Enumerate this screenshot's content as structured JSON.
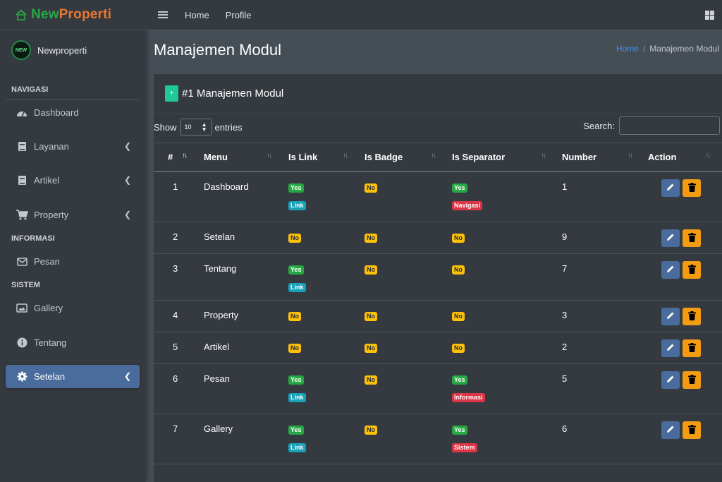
{
  "brand": {
    "new": "New",
    "properti": "Properti",
    "logo_icon": "house-icon"
  },
  "user": {
    "name": "Newproperti",
    "avatar_text": "NEW"
  },
  "sidebar": {
    "headers": [
      "NAVIGASI",
      "INFORMASI",
      "SISTEM"
    ],
    "items": [
      {
        "label": "Dashboard",
        "icon": "gauge-icon",
        "chevron": false
      },
      {
        "label": "Layanan",
        "icon": "book-icon",
        "chevron": true
      },
      {
        "label": "Artikel",
        "icon": "book-icon",
        "chevron": true
      },
      {
        "label": "Property",
        "icon": "cart-icon",
        "chevron": true
      },
      {
        "label": "Pesan",
        "icon": "envelope-icon",
        "chevron": false
      },
      {
        "label": "Gallery",
        "icon": "image-icon",
        "chevron": false
      },
      {
        "label": "Tentang",
        "icon": "info-icon",
        "chevron": false
      },
      {
        "label": "Setelan",
        "icon": "gear-icon",
        "chevron": true,
        "active": true
      }
    ]
  },
  "topbar": {
    "home": "Home",
    "profile": "Profile"
  },
  "page": {
    "title": "Manajemen Modul"
  },
  "breadcrumb": {
    "home": "Home",
    "current": "Manajemen Modul"
  },
  "card": {
    "add_label": "+",
    "title": "#1 Manajemen Modul"
  },
  "table_controls": {
    "show": "Show",
    "entries_value": "10",
    "entries": "entries",
    "search": "Search:"
  },
  "table": {
    "columns": [
      "#",
      "Menu",
      "Is Link",
      "Is Badge",
      "Is Separator",
      "Number",
      "Action"
    ],
    "rows": [
      {
        "no": "1",
        "menu": "Dashboard",
        "link": "Yes",
        "link_tag": "Link",
        "badge": "No",
        "sep": "Yes",
        "sep_tag": "Navigasi",
        "number": "1"
      },
      {
        "no": "2",
        "menu": "Setelan",
        "link": "No",
        "link_tag": "",
        "badge": "No",
        "sep": "No",
        "sep_tag": "",
        "number": "9"
      },
      {
        "no": "3",
        "menu": "Tentang",
        "link": "Yes",
        "link_tag": "Link",
        "badge": "No",
        "sep": "No",
        "sep_tag": "",
        "number": "7"
      },
      {
        "no": "4",
        "menu": "Property",
        "link": "No",
        "link_tag": "",
        "badge": "No",
        "sep": "No",
        "sep_tag": "",
        "number": "3"
      },
      {
        "no": "5",
        "menu": "Artikel",
        "link": "No",
        "link_tag": "",
        "badge": "No",
        "sep": "No",
        "sep_tag": "",
        "number": "2"
      },
      {
        "no": "6",
        "menu": "Pesan",
        "link": "Yes",
        "link_tag": "Link",
        "badge": "No",
        "sep": "Yes",
        "sep_tag": "Informasi",
        "number": "5"
      },
      {
        "no": "7",
        "menu": "Gallery",
        "link": "Yes",
        "link_tag": "Link",
        "badge": "No",
        "sep": "Yes",
        "sep_tag": "Sistem",
        "number": "6"
      }
    ]
  },
  "colors": {
    "accent": "#4a6c9c",
    "add": "#20c997",
    "yes": "#28a745",
    "no": "#ffc107",
    "link": "#17a2b8",
    "separator": "#dc3545",
    "delete": "#f39c12"
  }
}
